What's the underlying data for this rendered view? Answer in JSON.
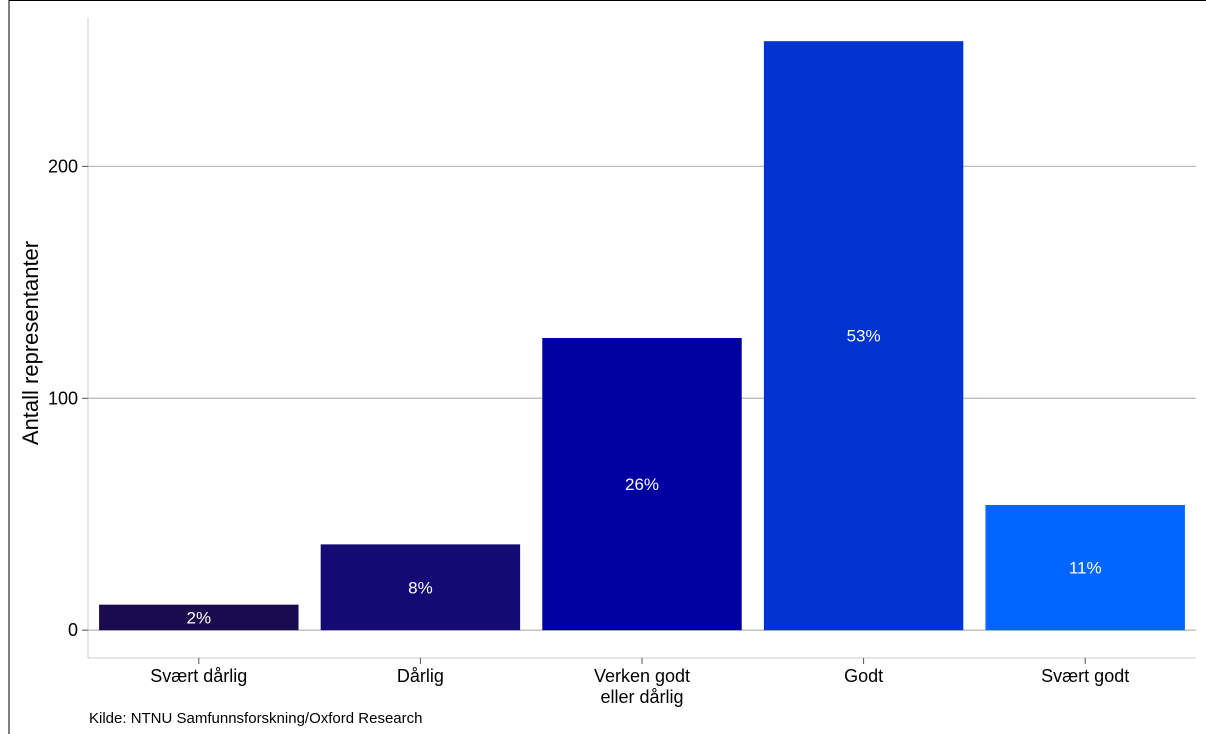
{
  "chart_data": {
    "type": "bar",
    "title": "",
    "xlabel": "",
    "ylabel": "Antall representanter",
    "ylim": [
      -12,
      264
    ],
    "yticks": [
      0,
      100,
      200
    ],
    "grid": true,
    "categories": [
      [
        "Svært dårlig"
      ],
      [
        "Dårlig"
      ],
      [
        "Verken godt",
        "eller dårlig"
      ],
      [
        "Godt"
      ],
      [
        "Svært godt"
      ]
    ],
    "values": [
      11,
      37,
      126,
      254,
      54
    ],
    "data_labels": [
      "2%",
      "8%",
      "26%",
      "53%",
      "11%"
    ],
    "colors": [
      "#1a0a4e",
      "#140a73",
      "#0000a0",
      "#0033d0",
      "#0066ff"
    ],
    "caption": "Kilde: NTNU Samfunnsforskning/Oxford Research"
  }
}
